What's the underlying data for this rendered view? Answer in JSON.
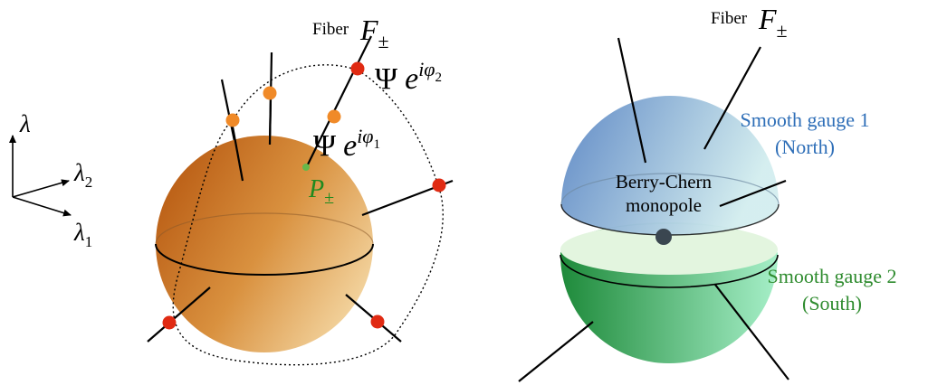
{
  "left": {
    "fiber_word": "Fiber",
    "fiber_symbol": "F",
    "fiber_sub": "±",
    "psi_symbol": "Ψ",
    "e_symbol": "e",
    "phase2": "iφ",
    "phase2_sub": "2",
    "phase1": "iφ",
    "phase1_sub": "1",
    "point_symbol": "P",
    "point_sub": "±",
    "point_color": "#1f8a1f"
  },
  "axes": {
    "lambda": "λ",
    "lambda2": "λ",
    "lambda2_sub": "2",
    "lambda1": "λ",
    "lambda1_sub": "1"
  },
  "right": {
    "fiber_word": "Fiber",
    "fiber_symbol": "F",
    "fiber_sub": "±",
    "north_line1": "Smooth gauge 1",
    "north_line2": "(North)",
    "north_color": "#2f6fb8",
    "south_line1": "Smooth gauge 2",
    "south_line2": "(South)",
    "south_color": "#2e8b2e",
    "monopole_line1": "Berry-Chern",
    "monopole_line2": "monopole"
  },
  "colors": {
    "sphere_dark": "#b85a12",
    "sphere_light": "#f6dcaa",
    "red_dot": "#e02a12",
    "orange_dot": "#f08a28",
    "north_dark": "#5b86c4",
    "north_light": "#d4eeef",
    "south_dark": "#1e8a3a",
    "south_light": "#a6efc8"
  }
}
